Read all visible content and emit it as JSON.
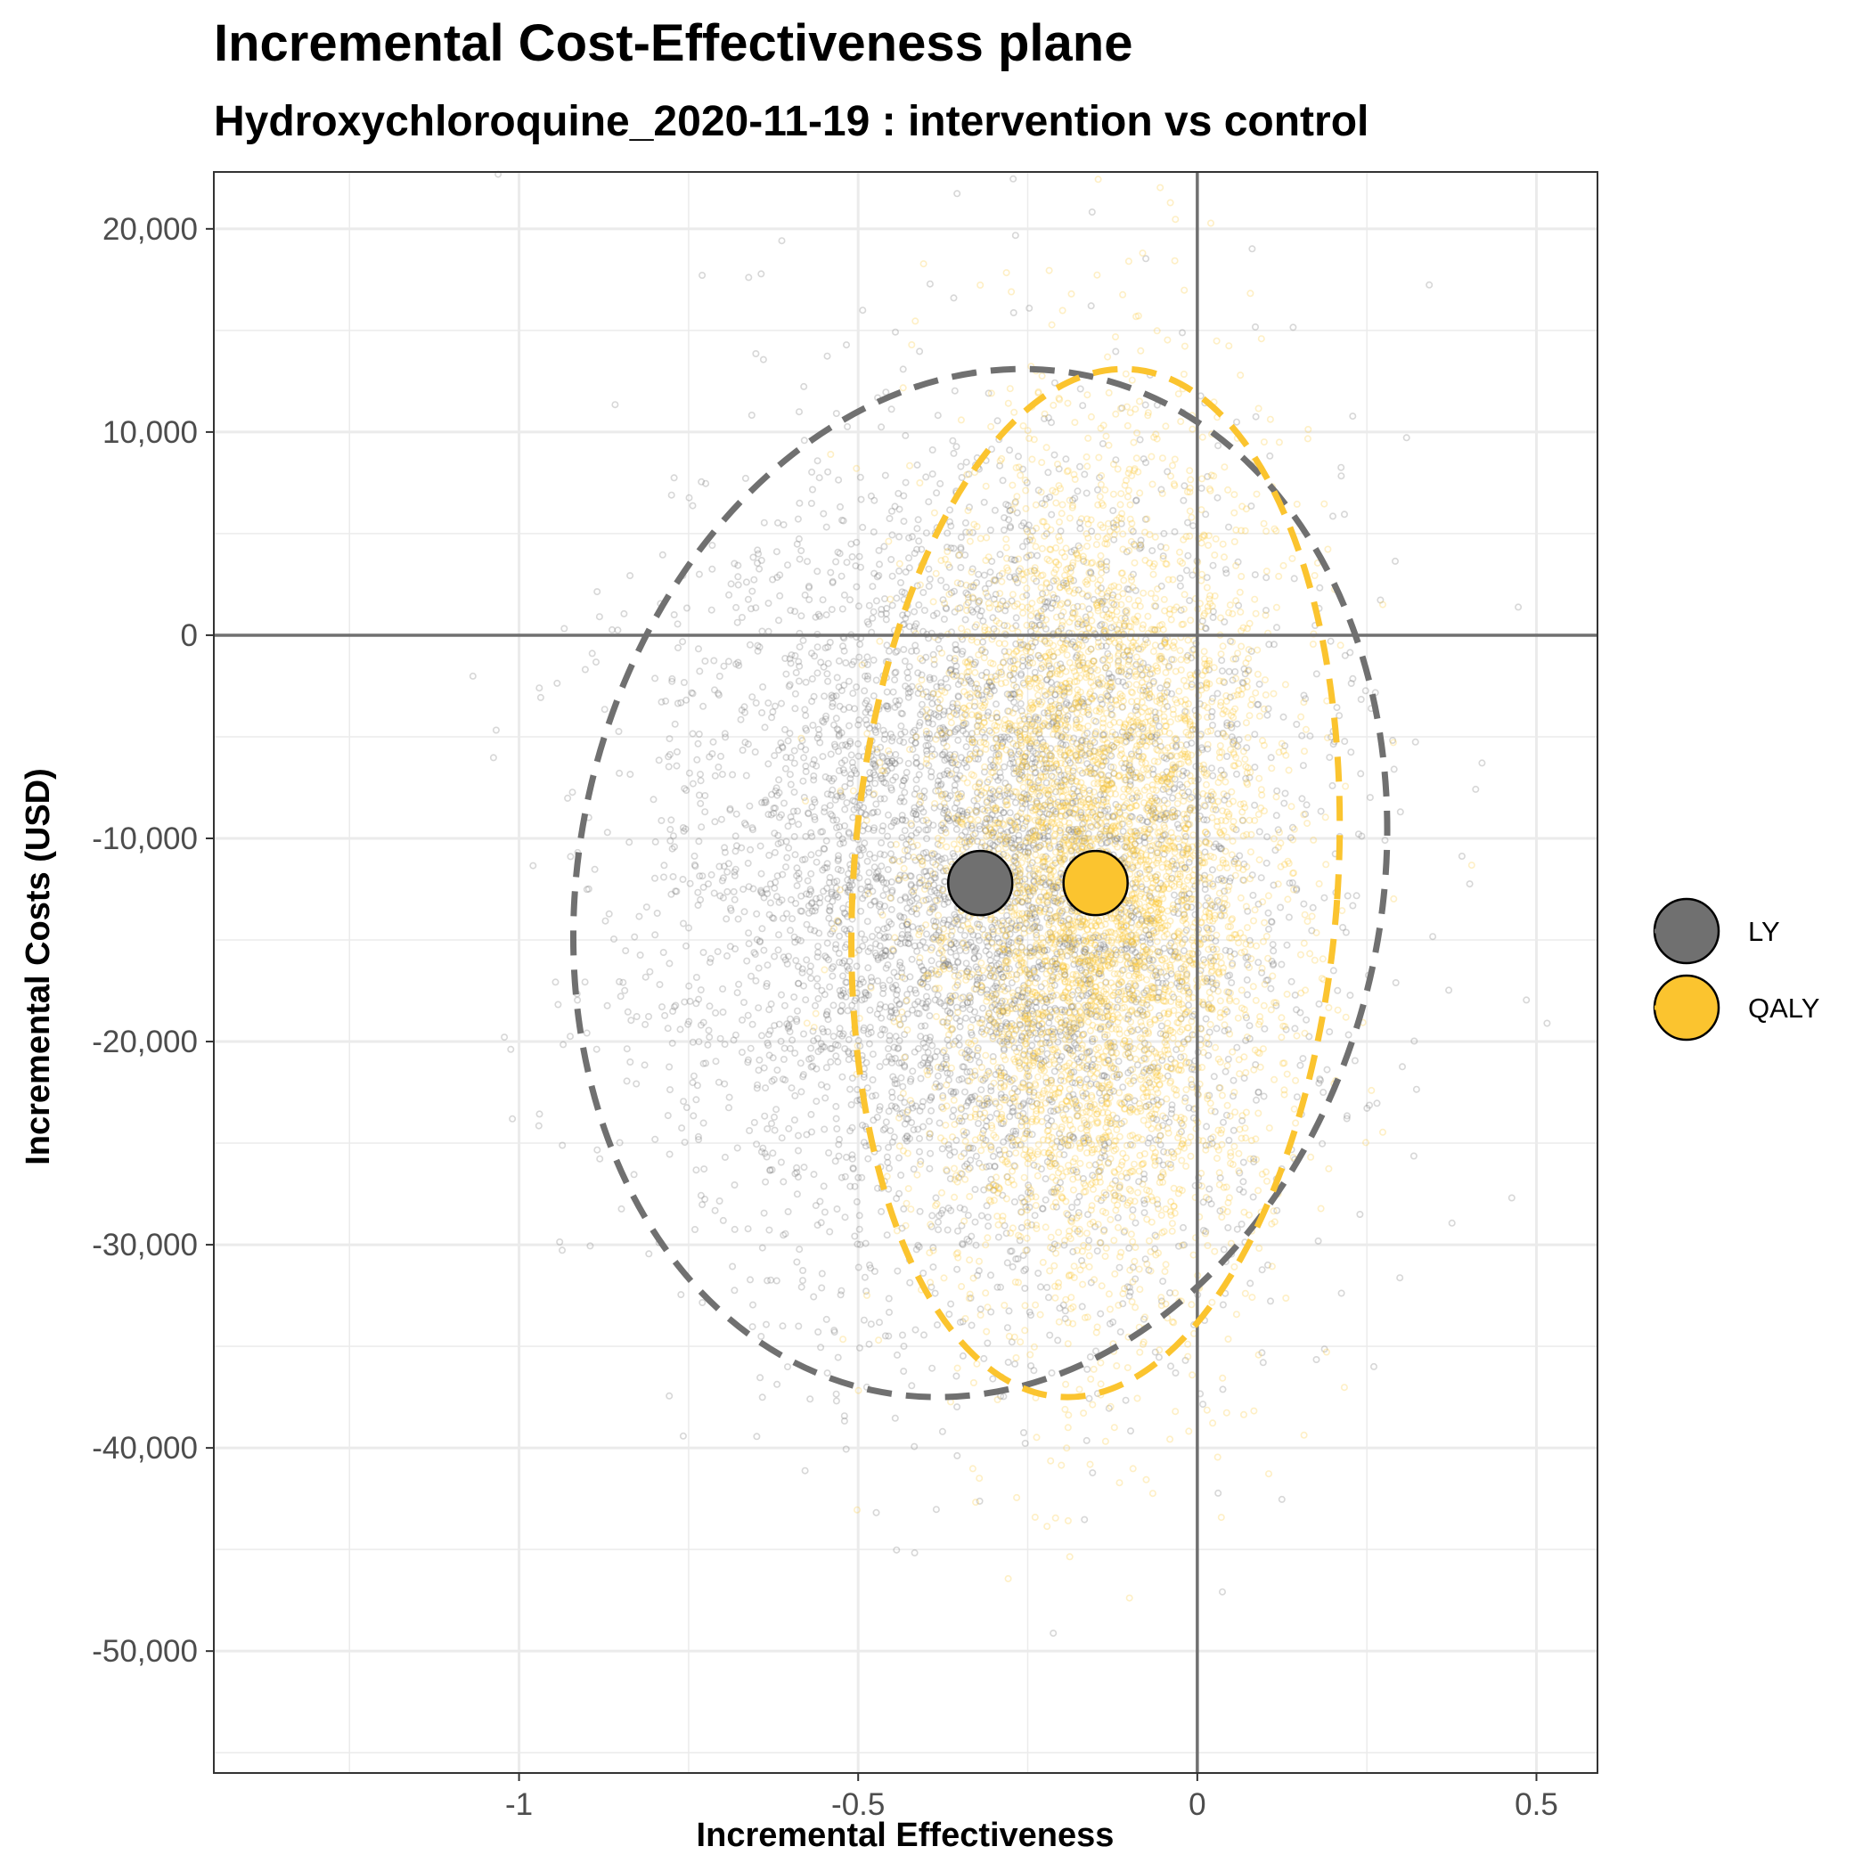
{
  "chart_data": {
    "type": "scatter",
    "title": "Incremental Cost-Effectiveness plane",
    "subtitle": "Hydroxychloroquine_2020-11-19 : intervention vs control",
    "xlabel": "Incremental Effectiveness",
    "ylabel": "Incremental Costs (USD)",
    "xlim": [
      -1.45,
      0.59
    ],
    "ylim": [
      -56000,
      22800
    ],
    "x_ticks": [
      -1,
      -0.5,
      0,
      0.5
    ],
    "x_tick_labels": [
      "-1",
      "-0.5",
      "0",
      "0.5"
    ],
    "y_ticks": [
      20000,
      10000,
      0,
      -10000,
      -20000,
      -30000,
      -40000,
      -50000
    ],
    "y_tick_labels": [
      "20,000",
      "10,000",
      "0",
      "-10,000",
      "-20,000",
      "-30,000",
      "-40,000",
      "-50,000"
    ],
    "grid": true,
    "reference_lines": {
      "x": 0,
      "y": 0
    },
    "legend_position": "right",
    "series": [
      {
        "name": "LY",
        "color": "#707070",
        "mean": {
          "x": -0.32,
          "y": -12200
        },
        "cloud": {
          "n": 5000,
          "mean_x": -0.32,
          "sd_x": 0.23,
          "mean_y": -12200,
          "sd_y": 10300,
          "seed": 11
        },
        "ellipse_95": {
          "center_x": -0.32,
          "center_y": -12200,
          "extents_x": [
            -0.92,
            0.28
          ],
          "extents_y": [
            -37500,
            13100
          ],
          "rotation_deg": 12
        }
      },
      {
        "name": "QALY",
        "color": "#FBC42F",
        "mean": {
          "x": -0.15,
          "y": -12200
        },
        "cloud": {
          "n": 5000,
          "mean_x": -0.15,
          "sd_x": 0.13,
          "mean_y": -12200,
          "sd_y": 10400,
          "seed": 29
        },
        "ellipse_95": {
          "center_x": -0.15,
          "center_y": -12200,
          "extents_x": [
            -0.5,
            0.22
          ],
          "extents_y": [
            -37500,
            13100
          ],
          "rotation_deg": 4
        }
      }
    ]
  }
}
